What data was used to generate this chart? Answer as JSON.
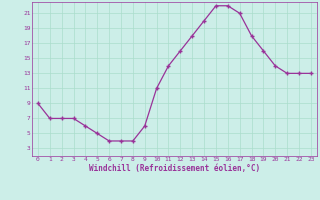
{
  "x": [
    0,
    1,
    2,
    3,
    4,
    5,
    6,
    7,
    8,
    9,
    10,
    11,
    12,
    13,
    14,
    15,
    16,
    17,
    18,
    19,
    20,
    21,
    22,
    23
  ],
  "y": [
    9,
    7,
    7,
    7,
    6,
    5,
    4,
    4,
    4,
    6,
    11,
    14,
    16,
    18,
    20,
    22,
    22,
    21,
    18,
    16,
    14,
    13,
    13,
    13
  ],
  "xlim": [
    -0.5,
    23.5
  ],
  "ylim": [
    2,
    22.5
  ],
  "yticks": [
    3,
    5,
    7,
    9,
    11,
    13,
    15,
    17,
    19,
    21
  ],
  "xticks": [
    0,
    1,
    2,
    3,
    4,
    5,
    6,
    7,
    8,
    9,
    10,
    11,
    12,
    13,
    14,
    15,
    16,
    17,
    18,
    19,
    20,
    21,
    22,
    23
  ],
  "xlabel": "Windchill (Refroidissement éolien,°C)",
  "line_color": "#993399",
  "bg_color": "#cceee8",
  "grid_color": "#aaddcc",
  "label_color": "#993399",
  "tick_color": "#993399"
}
